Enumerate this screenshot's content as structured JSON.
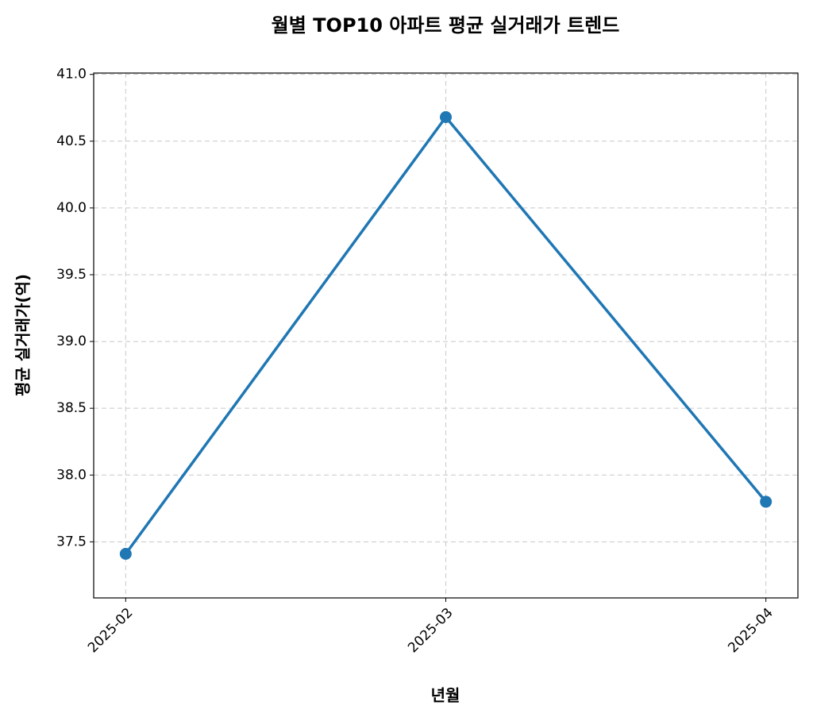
{
  "chart_data": {
    "type": "line",
    "title": "월별 TOP10 아파트 평균 실거래가 트렌드",
    "x_label": "년월",
    "y_label": "평균 실거래가(억)",
    "categories": [
      "2025-02",
      "2025-03",
      "2025-04"
    ],
    "series": [
      {
        "name": "평균 실거래가",
        "color": "#1f77b4",
        "values": [
          37.41,
          40.68,
          37.8
        ]
      }
    ],
    "ylim": [
      37.08,
      41.01
    ],
    "yticks": [
      {
        "value": 37.5,
        "label": "37.5"
      },
      {
        "value": 38,
        "label": "38.0"
      },
      38.5,
      {
        "value": 39,
        "label": "39.0"
      },
      39.5,
      {
        "value": 40,
        "label": "40.0"
      },
      40.5,
      {
        "value": 41,
        "label": "41.0"
      }
    ],
    "grid": true,
    "marker": "circle"
  }
}
